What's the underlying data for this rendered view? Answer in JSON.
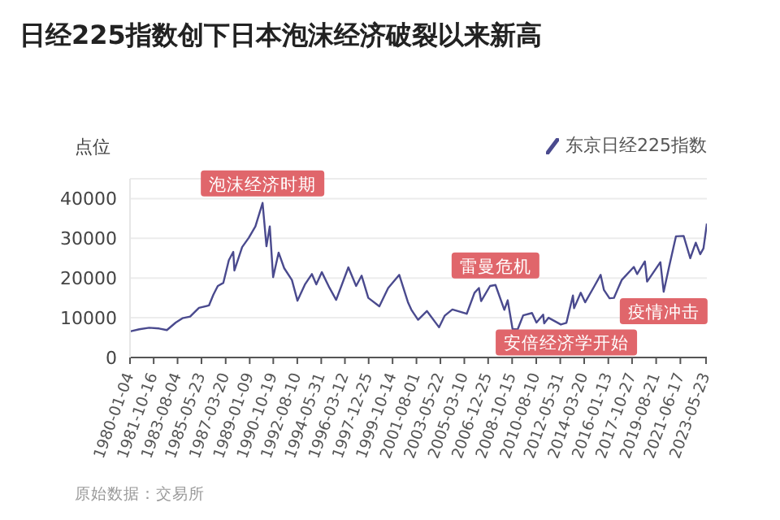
{
  "chart_data": {
    "type": "line",
    "title": "日经225指数创下日本泡沫经济破裂以来新高",
    "ylabel": "点位",
    "x": [
      "1980-01-04",
      "1980-09",
      "1981-06",
      "1982-03",
      "1982-10",
      "1983-06",
      "1983-12",
      "1984-07",
      "1985-03",
      "1985-12",
      "1986-04",
      "1986-08",
      "1987-01",
      "1987-06",
      "1987-10",
      "1987-11",
      "1988-06",
      "1988-12",
      "1989-06",
      "1989-12-29",
      "1990-04",
      "1990-07",
      "1990-10",
      "1991-03",
      "1991-08",
      "1992-03",
      "1992-08",
      "1993-03",
      "1993-09",
      "1994-01",
      "1994-06",
      "1995-01",
      "1995-07",
      "1996-06",
      "1997-01",
      "1997-06",
      "1997-12",
      "1998-10",
      "1999-06",
      "2000-04",
      "2000-12",
      "2001-03",
      "2001-09",
      "2002-05",
      "2003-04",
      "2003-09",
      "2004-04",
      "2005-05",
      "2005-12",
      "2006-04",
      "2006-06",
      "2007-02",
      "2007-07",
      "2008-03",
      "2008-06",
      "2008-10-27",
      "2009-03",
      "2009-08",
      "2010-04",
      "2010-08",
      "2011-02",
      "2011-03",
      "2011-07",
      "2012-06",
      "2012-11",
      "2013-05",
      "2013-06",
      "2013-12",
      "2014-04",
      "2014-12",
      "2015-06",
      "2015-09",
      "2016-02",
      "2016-06",
      "2017-01",
      "2017-12",
      "2018-03",
      "2018-10",
      "2018-12",
      "2019-12",
      "2020-03",
      "2020-08",
      "2021-02",
      "2021-09",
      "2022-03",
      "2022-08",
      "2022-12",
      "2023-03",
      "2023-06-16"
    ],
    "series": [
      {
        "name": "东京日经225指数",
        "color": "#4a4a8e",
        "values": [
          6560,
          7100,
          7500,
          7300,
          6900,
          8800,
          9890,
          10300,
          12500,
          13100,
          15800,
          18000,
          18800,
          24500,
          26600,
          21900,
          27800,
          30150,
          33000,
          38916,
          28000,
          33000,
          20220,
          26400,
          22500,
          19500,
          14300,
          18500,
          21000,
          18400,
          21500,
          17500,
          14500,
          22700,
          18000,
          20600,
          15000,
          12900,
          17500,
          20800,
          13800,
          12000,
          9500,
          11700,
          7600,
          10500,
          12100,
          11000,
          16300,
          17500,
          14200,
          18000,
          18260,
          12000,
          14400,
          7160,
          7050,
          10600,
          11200,
          8800,
          10800,
          8600,
          10000,
          8300,
          8700,
          15600,
          12400,
          16300,
          13900,
          17800,
          20800,
          17000,
          14900,
          15000,
          19500,
          22800,
          21000,
          24200,
          19100,
          24000,
          16550,
          23000,
          30500,
          30600,
          25000,
          28900,
          26000,
          27500,
          33700
        ]
      }
    ],
    "xlim": [
      "1980-01-04",
      "2023-06-16"
    ],
    "xticks": [
      "1980-01-04",
      "1981-10-16",
      "1983-08-04",
      "1985-05-23",
      "1987-03-20",
      "1989-01-09",
      "1990-10-19",
      "1992-08-10",
      "1994-05-31",
      "1996-03-12",
      "1997-12-25",
      "1999-10-14",
      "2001-08-01",
      "2003-05-22",
      "2005-03-10",
      "2006-12-25",
      "2008-10-15",
      "2010-08-10",
      "2012-05-31",
      "2014-03-20",
      "2016-01-13",
      "2017-10-27",
      "2019-08-21",
      "2021-06-17",
      "2023-05-23"
    ],
    "ylim": [
      0,
      45000
    ],
    "yticks": [
      0,
      10000,
      20000,
      30000,
      40000
    ],
    "grid": "y",
    "legend": "top right",
    "marker": "none",
    "line_style": "solid",
    "annotations": [
      {
        "text": "泡沫经济时期",
        "x": "1989-12-29",
        "y": 38916
      },
      {
        "text": "雷曼危机",
        "x": "2007-07",
        "y": 18260
      },
      {
        "text": "安倍经济学开始",
        "x": "2012-11",
        "y": 8700
      },
      {
        "text": "疫情冲击",
        "x": "2020-03",
        "y": 16550
      },
      "原始数据：交易所"
    ]
  }
}
